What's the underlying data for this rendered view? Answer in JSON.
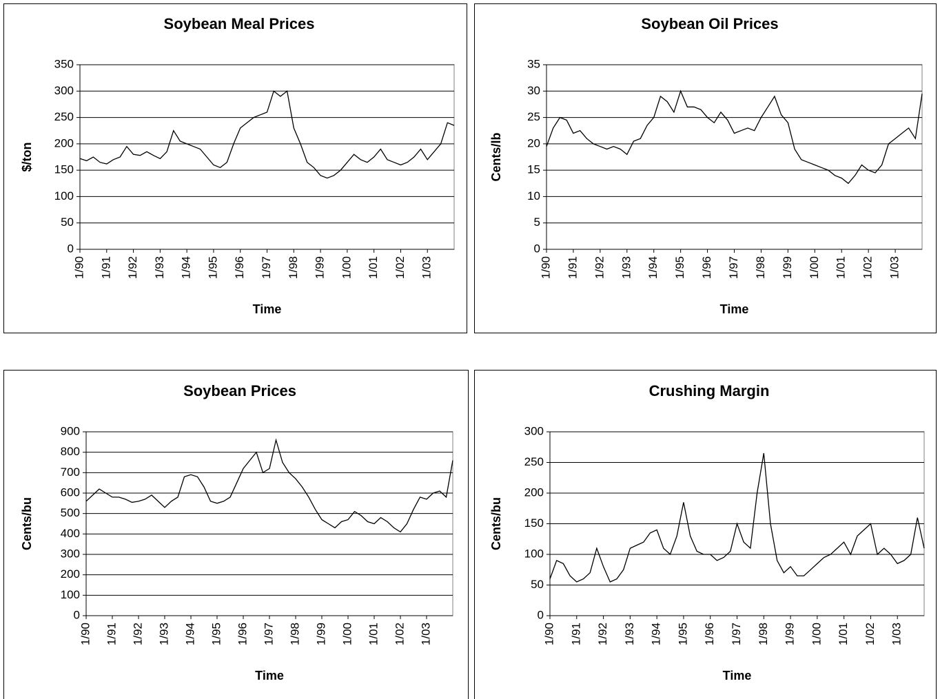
{
  "chart_data": [
    {
      "type": "line",
      "title": "Soybean Meal Prices",
      "xlabel": "Time",
      "ylabel": "$/ton",
      "color": "#000000",
      "grid": true,
      "xlim": [
        1990,
        2004
      ],
      "ylim": [
        0,
        350
      ],
      "yticks": [
        0,
        50,
        100,
        150,
        200,
        250,
        300,
        350
      ],
      "xticks": [
        {
          "value": 1990,
          "label": "1/90"
        },
        {
          "value": 1991,
          "label": "1/91"
        },
        {
          "value": 1992,
          "label": "1/92"
        },
        {
          "value": 1993,
          "label": "1/93"
        },
        {
          "value": 1994,
          "label": "1/94"
        },
        {
          "value": 1995,
          "label": "1/95"
        },
        {
          "value": 1996,
          "label": "1/96"
        },
        {
          "value": 1997,
          "label": "1/97"
        },
        {
          "value": 1998,
          "label": "1/98"
        },
        {
          "value": 1999,
          "label": "1/99"
        },
        {
          "value": 2000,
          "label": "1/00"
        },
        {
          "value": 2001,
          "label": "1/01"
        },
        {
          "value": 2002,
          "label": "1/02"
        },
        {
          "value": 2003,
          "label": "1/03"
        }
      ],
      "x": [
        1990,
        1990.25,
        1990.5,
        1990.75,
        1991,
        1991.25,
        1991.5,
        1991.75,
        1992,
        1992.25,
        1992.5,
        1992.75,
        1993,
        1993.25,
        1993.5,
        1993.75,
        1994,
        1994.25,
        1994.5,
        1994.75,
        1995,
        1995.25,
        1995.5,
        1995.75,
        1996,
        1996.25,
        1996.5,
        1996.75,
        1997,
        1997.25,
        1997.5,
        1997.75,
        1998,
        1998.25,
        1998.5,
        1998.75,
        1999,
        1999.25,
        1999.5,
        1999.75,
        2000,
        2000.25,
        2000.5,
        2000.75,
        2001,
        2001.25,
        2001.5,
        2001.75,
        2002,
        2002.25,
        2002.5,
        2002.75,
        2003,
        2003.25,
        2003.5,
        2003.75,
        2004
      ],
      "values": [
        172,
        168,
        175,
        165,
        162,
        170,
        175,
        195,
        180,
        178,
        185,
        178,
        172,
        185,
        225,
        205,
        200,
        195,
        190,
        175,
        160,
        155,
        165,
        200,
        230,
        240,
        250,
        255,
        260,
        300,
        290,
        300,
        230,
        200,
        165,
        155,
        140,
        135,
        140,
        150,
        165,
        180,
        170,
        165,
        175,
        190,
        170,
        165,
        160,
        165,
        175,
        190,
        170,
        185,
        200,
        240,
        235
      ]
    },
    {
      "type": "line",
      "title": "Soybean Oil Prices",
      "xlabel": "Time",
      "ylabel": "Cents/lb",
      "color": "#000000",
      "grid": true,
      "xlim": [
        1990,
        2004
      ],
      "ylim": [
        0,
        35
      ],
      "yticks": [
        0,
        5,
        10,
        15,
        20,
        25,
        30,
        35
      ],
      "xticks": [
        {
          "value": 1990,
          "label": "1/90"
        },
        {
          "value": 1991,
          "label": "1/91"
        },
        {
          "value": 1992,
          "label": "1/92"
        },
        {
          "value": 1993,
          "label": "1/93"
        },
        {
          "value": 1994,
          "label": "1/94"
        },
        {
          "value": 1995,
          "label": "1/95"
        },
        {
          "value": 1996,
          "label": "1/96"
        },
        {
          "value": 1997,
          "label": "1/97"
        },
        {
          "value": 1998,
          "label": "1/98"
        },
        {
          "value": 1999,
          "label": "1/99"
        },
        {
          "value": 2000,
          "label": "1/00"
        },
        {
          "value": 2001,
          "label": "1/01"
        },
        {
          "value": 2002,
          "label": "1/02"
        },
        {
          "value": 2003,
          "label": "1/03"
        }
      ],
      "x": [
        1990,
        1990.25,
        1990.5,
        1990.75,
        1991,
        1991.25,
        1991.5,
        1991.75,
        1992,
        1992.25,
        1992.5,
        1992.75,
        1993,
        1993.25,
        1993.5,
        1993.75,
        1994,
        1994.25,
        1994.5,
        1994.75,
        1995,
        1995.25,
        1995.5,
        1995.75,
        1996,
        1996.25,
        1996.5,
        1996.75,
        1997,
        1997.25,
        1997.5,
        1997.75,
        1998,
        1998.25,
        1998.5,
        1998.75,
        1999,
        1999.25,
        1999.5,
        1999.75,
        2000,
        2000.25,
        2000.5,
        2000.75,
        2001,
        2001.25,
        2001.5,
        2001.75,
        2002,
        2002.25,
        2002.5,
        2002.75,
        2003,
        2003.25,
        2003.5,
        2003.75,
        2004
      ],
      "values": [
        19.5,
        23,
        25,
        24.5,
        22,
        22.5,
        21,
        20,
        19.5,
        19,
        19.5,
        19,
        18,
        20.5,
        21,
        23.5,
        25,
        29,
        28,
        26,
        30,
        27,
        27,
        26.5,
        25,
        24,
        26,
        24.5,
        22,
        22.5,
        23,
        22.5,
        25,
        27,
        29,
        25.5,
        24,
        19,
        17,
        16.5,
        16,
        15.5,
        15,
        14,
        13.5,
        12.5,
        14,
        16,
        15,
        14.5,
        16,
        20,
        21,
        22,
        23,
        21,
        29.5
      ]
    },
    {
      "type": "line",
      "title": "Soybean Prices",
      "xlabel": "Time",
      "ylabel": "Cents/bu",
      "color": "#000000",
      "grid": true,
      "xlim": [
        1990,
        2004
      ],
      "ylim": [
        0,
        900
      ],
      "yticks": [
        0,
        100,
        200,
        300,
        400,
        500,
        600,
        700,
        800,
        900
      ],
      "xticks": [
        {
          "value": 1990,
          "label": "1/90"
        },
        {
          "value": 1991,
          "label": "1/91"
        },
        {
          "value": 1992,
          "label": "1/92"
        },
        {
          "value": 1993,
          "label": "1/93"
        },
        {
          "value": 1994,
          "label": "1/94"
        },
        {
          "value": 1995,
          "label": "1/95"
        },
        {
          "value": 1996,
          "label": "1/96"
        },
        {
          "value": 1997,
          "label": "1/97"
        },
        {
          "value": 1998,
          "label": "1/98"
        },
        {
          "value": 1999,
          "label": "1/99"
        },
        {
          "value": 2000,
          "label": "1/00"
        },
        {
          "value": 2001,
          "label": "1/01"
        },
        {
          "value": 2002,
          "label": "1/02"
        },
        {
          "value": 2003,
          "label": "1/03"
        }
      ],
      "x": [
        1990,
        1990.25,
        1990.5,
        1990.75,
        1991,
        1991.25,
        1991.5,
        1991.75,
        1992,
        1992.25,
        1992.5,
        1992.75,
        1993,
        1993.25,
        1993.5,
        1993.75,
        1994,
        1994.25,
        1994.5,
        1994.75,
        1995,
        1995.25,
        1995.5,
        1995.75,
        1996,
        1996.25,
        1996.5,
        1996.75,
        1997,
        1997.25,
        1997.5,
        1997.75,
        1998,
        1998.25,
        1998.5,
        1998.75,
        1999,
        1999.25,
        1999.5,
        1999.75,
        2000,
        2000.25,
        2000.5,
        2000.75,
        2001,
        2001.25,
        2001.5,
        2001.75,
        2002,
        2002.25,
        2002.5,
        2002.75,
        2003,
        2003.25,
        2003.5,
        2003.75,
        2004
      ],
      "values": [
        560,
        590,
        620,
        600,
        580,
        580,
        570,
        555,
        560,
        570,
        590,
        560,
        530,
        560,
        580,
        680,
        690,
        680,
        630,
        560,
        550,
        560,
        580,
        650,
        720,
        760,
        800,
        700,
        720,
        860,
        750,
        700,
        670,
        630,
        580,
        520,
        470,
        450,
        430,
        460,
        470,
        510,
        490,
        460,
        450,
        480,
        460,
        430,
        410,
        450,
        520,
        580,
        570,
        600,
        610,
        580,
        760
      ]
    },
    {
      "type": "line",
      "title": "Crushing Margin",
      "xlabel": "Time",
      "ylabel": "Cents/bu",
      "color": "#000000",
      "grid": true,
      "xlim": [
        1990,
        2004
      ],
      "ylim": [
        0,
        300
      ],
      "yticks": [
        0,
        50,
        100,
        150,
        200,
        250,
        300
      ],
      "xticks": [
        {
          "value": 1990,
          "label": "1/90"
        },
        {
          "value": 1991,
          "label": "1/91"
        },
        {
          "value": 1992,
          "label": "1/92"
        },
        {
          "value": 1993,
          "label": "1/93"
        },
        {
          "value": 1994,
          "label": "1/94"
        },
        {
          "value": 1995,
          "label": "1/95"
        },
        {
          "value": 1996,
          "label": "1/96"
        },
        {
          "value": 1997,
          "label": "1/97"
        },
        {
          "value": 1998,
          "label": "1/98"
        },
        {
          "value": 1999,
          "label": "1/99"
        },
        {
          "value": 2000,
          "label": "1/00"
        },
        {
          "value": 2001,
          "label": "1/01"
        },
        {
          "value": 2002,
          "label": "1/02"
        },
        {
          "value": 2003,
          "label": "1/03"
        }
      ],
      "x": [
        1990,
        1990.25,
        1990.5,
        1990.75,
        1991,
        1991.25,
        1991.5,
        1991.75,
        1992,
        1992.25,
        1992.5,
        1992.75,
        1993,
        1993.25,
        1993.5,
        1993.75,
        1994,
        1994.25,
        1994.5,
        1994.75,
        1995,
        1995.25,
        1995.5,
        1995.75,
        1996,
        1996.25,
        1996.5,
        1996.75,
        1997,
        1997.25,
        1997.5,
        1997.75,
        1998,
        1998.25,
        1998.5,
        1998.75,
        1999,
        1999.25,
        1999.5,
        1999.75,
        2000,
        2000.25,
        2000.5,
        2000.75,
        2001,
        2001.25,
        2001.5,
        2001.75,
        2002,
        2002.25,
        2002.5,
        2002.75,
        2003,
        2003.25,
        2003.5,
        2003.75,
        2004
      ],
      "values": [
        60,
        90,
        85,
        65,
        55,
        60,
        70,
        110,
        80,
        55,
        60,
        75,
        110,
        115,
        120,
        135,
        140,
        110,
        100,
        130,
        185,
        130,
        105,
        100,
        100,
        90,
        95,
        105,
        150,
        120,
        110,
        200,
        265,
        150,
        90,
        70,
        80,
        65,
        65,
        75,
        85,
        95,
        100,
        110,
        120,
        100,
        130,
        140,
        150,
        100,
        110,
        100,
        85,
        90,
        100,
        160,
        110
      ]
    }
  ]
}
